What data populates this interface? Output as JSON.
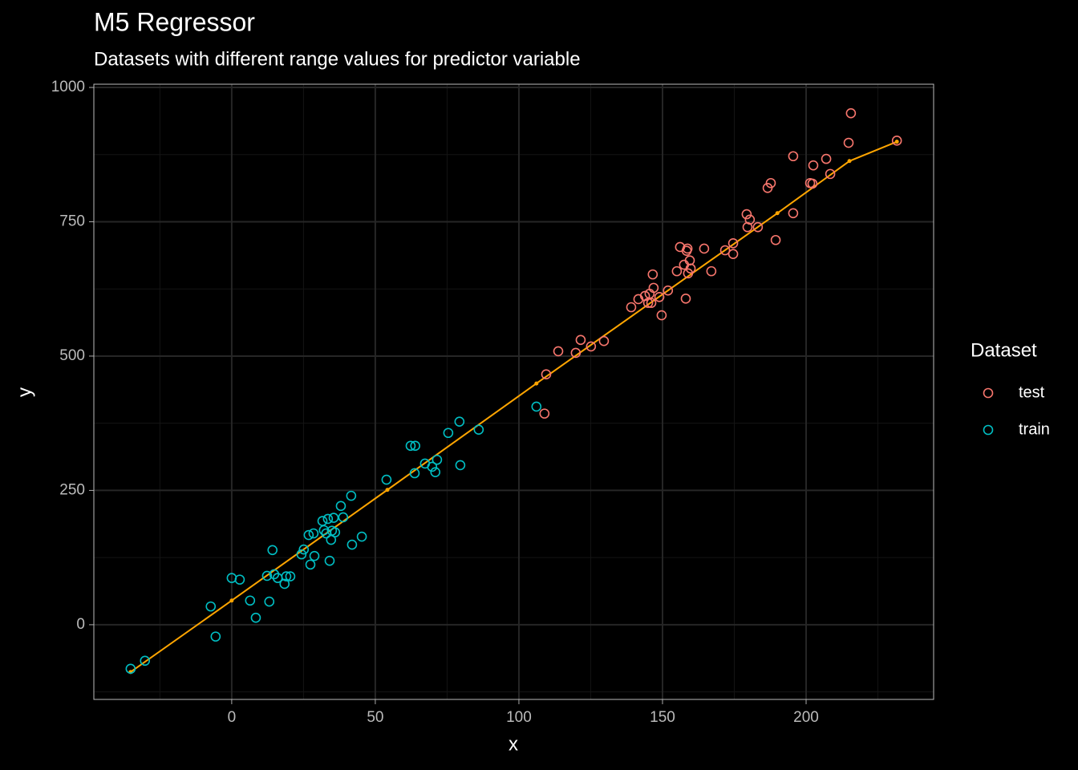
{
  "chart_data": {
    "type": "scatter",
    "title": "M5 Regressor",
    "subtitle": "Datasets with different range values for predictor variable",
    "x_label": "x",
    "y_label": "y",
    "legend_title": "Dataset",
    "xlim": [
      -48,
      244.4
    ],
    "ylim": [
      -139,
      1006
    ],
    "xticks": [
      0,
      50,
      100,
      150,
      200
    ],
    "yticks": [
      0,
      250,
      500,
      750,
      1000
    ],
    "x_minor_ticks": [
      -25,
      25,
      75,
      125,
      175,
      225
    ],
    "y_minor_ticks": [
      -125,
      125,
      375,
      625,
      875
    ],
    "grid": true,
    "series": [
      {
        "name": "test",
        "color": "#F8766D",
        "x": [
          108.9,
          109.5,
          113.7,
          119.8,
          121.5,
          125.1,
          129.6,
          139.1,
          141.6,
          143.9,
          145.0,
          145.5,
          146.1,
          146.6,
          146.9,
          148.9,
          149.7,
          151.9,
          155.0,
          156.1,
          157.5,
          158.4,
          158.7,
          158.1,
          158.9,
          159.5,
          159.8,
          164.5,
          167.0,
          171.8,
          174.6,
          174.6,
          179.3,
          179.6,
          180.4,
          183.2,
          186.6,
          187.7,
          189.4,
          195.5,
          195.5,
          201.4,
          202.2,
          202.5,
          207.0,
          208.4,
          214.8,
          215.6,
          231.6
        ],
        "values": [
          393,
          466,
          509,
          506,
          530,
          518,
          528,
          591,
          606,
          612,
          599,
          616,
          599,
          652,
          627,
          610,
          576,
          622,
          658,
          703,
          670,
          696,
          700,
          607,
          654,
          678,
          663,
          700,
          658,
          697,
          710,
          690,
          764,
          740,
          754,
          740,
          813,
          822,
          716,
          872,
          766,
          822,
          821,
          855,
          867,
          839,
          897,
          952,
          901
        ]
      },
      {
        "name": "train",
        "color": "#00BFC4",
        "x": [
          -35.2,
          -30.2,
          -7.3,
          -5.6,
          0,
          2.8,
          6.4,
          8.4,
          13.1,
          12.3,
          14.2,
          14.8,
          16.0,
          18.4,
          19.0,
          20.4,
          24.3,
          25.1,
          26.8,
          27.4,
          28.5,
          28.8,
          31.6,
          32.1,
          32.9,
          33.5,
          34.1,
          34.6,
          34.9,
          35.5,
          36.0,
          38.0,
          38.8,
          41.6,
          41.9,
          45.3,
          53.9,
          62.3,
          63.9,
          63.7,
          67.3,
          69.8,
          70.9,
          71.5,
          75.4,
          79.3,
          79.6,
          86.0,
          106.1
        ],
        "values": [
          -82,
          -67,
          34,
          -22,
          87,
          84,
          45,
          13,
          43,
          91,
          139,
          94,
          87,
          76,
          90,
          90,
          131,
          140,
          167,
          112,
          170,
          128,
          193,
          176,
          170,
          197,
          119,
          158,
          175,
          199,
          172,
          221,
          200,
          240,
          149,
          164,
          270,
          333,
          333,
          282,
          300,
          294,
          284,
          307,
          357,
          378,
          297,
          363,
          406
        ]
      }
    ],
    "fit_line": {
      "color": "#FFA500",
      "x": [
        -35.2,
        0,
        54.2,
        106.1,
        190,
        215.1,
        231.6
      ],
      "values": [
        -88,
        45,
        251,
        449,
        766,
        863,
        899
      ]
    }
  }
}
